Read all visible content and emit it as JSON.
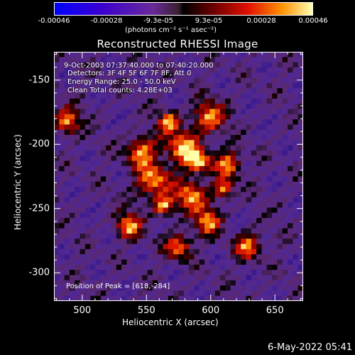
{
  "colorbar": {
    "ticks": [
      "-0.00046",
      "-0.00028",
      "-9.3e-05",
      "9.3e-05",
      "0.00028",
      "0.00046"
    ],
    "units": "(photons cm⁻² s⁻¹ asec⁻²)",
    "colors": [
      "#0000ff",
      "#3d00c8",
      "#6a2aa0",
      "#5a2a3a",
      "#000000",
      "#7a0000",
      "#ff2a00",
      "#ff9a00",
      "#ffff9a"
    ]
  },
  "title": "Reconstructed RHESSI Image",
  "info": {
    "time": "9-Oct-2003 07:37:40.000 to 07:40:20.000",
    "detectors": "Detectors: 3F 4F 5F 6F 7F 8F, Att 0",
    "energy": "Energy Range: 25.0 - 50.0 keV",
    "clean": "Clean     Total counts: 4.28E+03",
    "peak": "Position of Peak = [618,-284]"
  },
  "chart_data": {
    "type": "heatmap",
    "title": "Reconstructed RHESSI Image",
    "xlabel": "Heliocentric X (arcsec)",
    "ylabel": "Heliocentric Y (arcsec)",
    "xlim": [
      478,
      672
    ],
    "ylim": [
      -322,
      -128
    ],
    "xticks": [
      "500",
      "550",
      "600",
      "650"
    ],
    "yticks": [
      "-150",
      "-200",
      "-250",
      "-300"
    ],
    "value_range": [
      -0.00046,
      0.00046
    ],
    "peak": [
      618,
      -284
    ]
  },
  "datestamp": "6-May-2022 05:41"
}
